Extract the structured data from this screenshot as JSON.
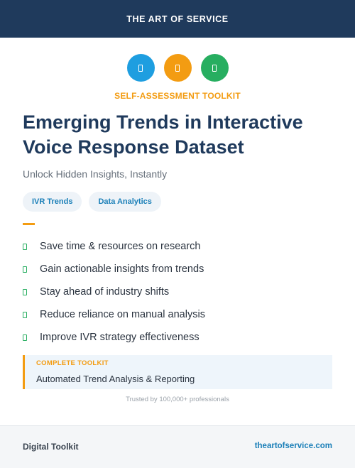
{
  "brand": {
    "title": "THE ART OF SERVICE"
  },
  "icons": [
    {
      "name": "icon-blue",
      "color": "#1e9ee0",
      "glyph": "doc-icon"
    },
    {
      "name": "icon-orange",
      "color": "#f39c12",
      "glyph": "doc-icon"
    },
    {
      "name": "icon-green",
      "color": "#27ae60",
      "glyph": "doc-icon"
    }
  ],
  "kicker": {
    "text": "SELF-ASSESSMENT TOOLKIT",
    "color": "#f39c12"
  },
  "title": "Emerging Trends in Interactive Voice Response Dataset",
  "subtitle": "Unlock Hidden Insights, Instantly",
  "tags": [
    "IVR Trends",
    "Data Analytics"
  ],
  "benefits": [
    "Save time & resources on research",
    "Gain actionable insights from trends",
    "Stay ahead of industry shifts",
    "Reduce reliance on manual analysis",
    "Improve IVR strategy effectiveness"
  ],
  "callout": {
    "label": "COMPLETE TOOLKIT",
    "text": "Automated Trend Analysis & Reporting",
    "label_color": "#f39c12"
  },
  "trust": "Trusted by 100,000+ professionals",
  "footer": {
    "left": "Digital Toolkit",
    "right": "theartofservice.com"
  },
  "colors": {
    "navy": "#1f3a5c",
    "accent_orange": "#f39c12",
    "accent_green": "#27ae60",
    "link_blue": "#1a7fb8"
  }
}
